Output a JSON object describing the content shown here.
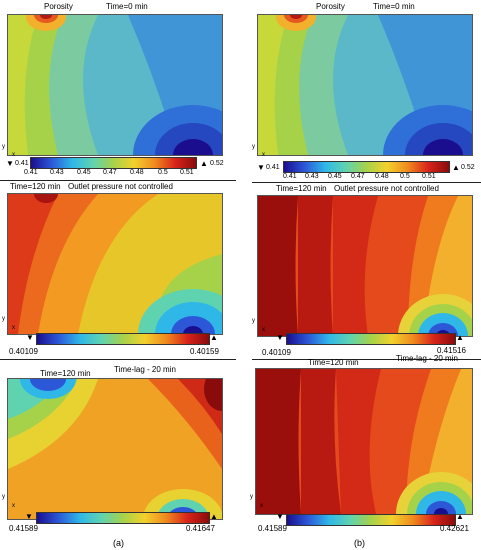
{
  "rows": [
    {
      "a": {
        "title_left": "Porosity",
        "title_right": "Time=0 min",
        "min_label": "0.41",
        "max_label": "0.52",
        "ticks": [
          "0.41",
          "0.43",
          "0.45",
          "0.47",
          "0.48",
          "0.5",
          "0.51"
        ]
      },
      "b": {
        "title_left": "Porosity",
        "title_right": "Time=0 min",
        "min_label": "0.41",
        "max_label": "0.52",
        "ticks": [
          "0.41",
          "0.43",
          "0.45",
          "0.47",
          "0.48",
          "0.5",
          "0.51"
        ]
      }
    },
    {
      "a": {
        "title_left": "Time=120 min",
        "title_right": "Outlet pressure not controlled",
        "min_label": "0.40109",
        "max_label": "0.40159"
      },
      "b": {
        "title_left": "Time=120 min",
        "title_right": "Outlet pressure not controlled",
        "min_label": "0.40109",
        "max_label": "0.41516"
      }
    },
    {
      "a": {
        "title_left": "Time=120 min",
        "title_right": "Time-lag - 20 min",
        "min_label": "0.41589",
        "max_label": "0.41647"
      },
      "b": {
        "title_left": "Time=120 min",
        "title_right": "Time-lag - 20 min",
        "min_label": "0.41589",
        "max_label": "0.42621"
      }
    }
  ],
  "axis": {
    "y": "y",
    "x": "x"
  },
  "sublabels": {
    "a": "(a)",
    "b": "(b)"
  },
  "colors": {
    "low": "#1a0e8f",
    "mid": "#5fd3b0",
    "high": "#8a0b0b"
  }
}
